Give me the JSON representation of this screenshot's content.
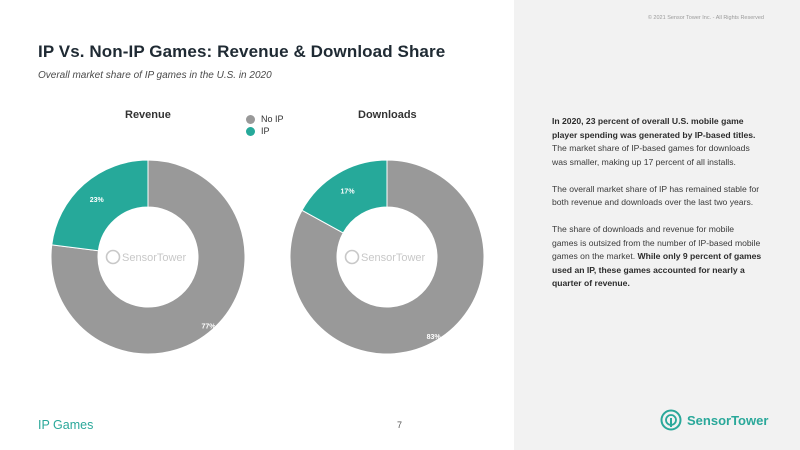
{
  "header": {
    "copyright": "© 2021 Sensor Tower Inc. - All Rights Reserved",
    "title": "IP Vs. Non-IP Games: Revenue & Download Share",
    "subtitle": "Overall market share of IP games in the U.S. in 2020"
  },
  "colors": {
    "no_ip": "#999999",
    "ip": "#26a99a",
    "accent": "#2aa89a"
  },
  "chart_data": [
    {
      "type": "pie",
      "title": "Revenue",
      "categories": [
        "No IP",
        "IP"
      ],
      "values": [
        77,
        23
      ],
      "labels": [
        "77%",
        "23%"
      ],
      "watermark": "SensorTower"
    },
    {
      "type": "pie",
      "title": "Downloads",
      "categories": [
        "No IP",
        "IP"
      ],
      "values": [
        83,
        17
      ],
      "labels": [
        "83%",
        "17%"
      ],
      "watermark": "SensorTower"
    }
  ],
  "legend": {
    "items": [
      {
        "label": "No IP",
        "color": "#999999"
      },
      {
        "label": "IP",
        "color": "#26a99a"
      }
    ]
  },
  "panel": {
    "p1_bold": "In 2020, 23 percent of overall U.S. mobile game player spending was generated by IP-based titles.",
    "p1_rest": " The market share of IP-based games for downloads was smaller, making up 17 percent of all installs.",
    "p2": "The overall market share of IP has remained stable for both revenue and downloads over the last two years.",
    "p3_rest": "The share of downloads and revenue for mobile games is outsized from the number of IP-based mobile games on the market. ",
    "p3_bold": "While only 9 percent of games used an IP, these games accounted for nearly a quarter of revenue."
  },
  "footer": {
    "section": "IP Games",
    "page": "7",
    "brand_a": "Sensor",
    "brand_b": "Tower"
  }
}
